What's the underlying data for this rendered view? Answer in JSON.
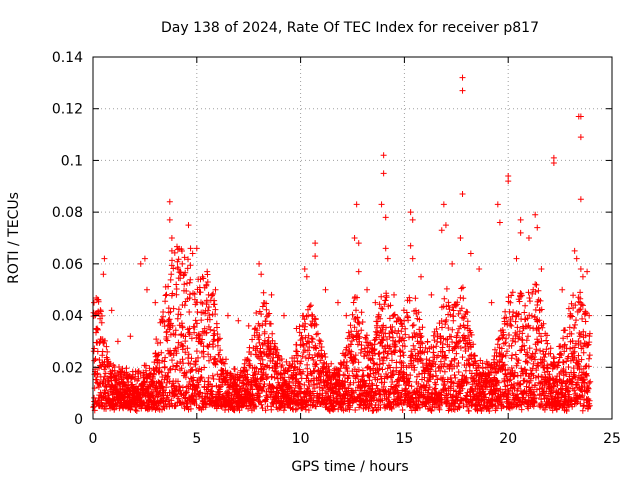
{
  "chart_data": {
    "type": "scatter",
    "title": "Day 138 of 2024, Rate Of TEC Index for receiver p817",
    "xlabel": "GPS time / hours",
    "ylabel": "ROTI / TECUs",
    "xlim": [
      0,
      25
    ],
    "ylim": [
      0,
      0.14
    ],
    "xticks": [
      {
        "value": 0,
        "label": "0"
      },
      {
        "value": 5,
        "label": "5"
      },
      {
        "value": 10,
        "label": "10"
      },
      {
        "value": 15,
        "label": "15"
      },
      {
        "value": 20,
        "label": "20"
      },
      {
        "value": 25,
        "label": "25"
      }
    ],
    "yticks": [
      {
        "value": 0,
        "label": "0"
      },
      {
        "value": 0.02,
        "label": "0.02"
      },
      {
        "value": 0.04,
        "label": "0.04"
      },
      {
        "value": 0.06,
        "label": "0.06"
      },
      {
        "value": 0.08,
        "label": "0.08"
      },
      {
        "value": 0.1,
        "label": "0.1"
      },
      {
        "value": 0.12,
        "label": "0.12"
      },
      {
        "value": 0.14,
        "label": "0.14"
      }
    ],
    "grid": true,
    "marker": "+",
    "series_color": "#ff0000",
    "points": [
      [
        0.05,
        0.045
      ],
      [
        0.1,
        0.04
      ],
      [
        0.2,
        0.035
      ],
      [
        0.55,
        0.062
      ],
      [
        0.5,
        0.056
      ],
      [
        0.9,
        0.042
      ],
      [
        1.2,
        0.03
      ],
      [
        1.8,
        0.032
      ],
      [
        2.3,
        0.06
      ],
      [
        2.5,
        0.062
      ],
      [
        2.6,
        0.05
      ],
      [
        3.0,
        0.045
      ],
      [
        3.7,
        0.084
      ],
      [
        3.7,
        0.077
      ],
      [
        3.8,
        0.07
      ],
      [
        3.8,
        0.065
      ],
      [
        4.1,
        0.058
      ],
      [
        4.3,
        0.06
      ],
      [
        4.6,
        0.075
      ],
      [
        4.7,
        0.066
      ],
      [
        4.8,
        0.064
      ],
      [
        5.0,
        0.066
      ],
      [
        5.5,
        0.057
      ],
      [
        5.9,
        0.05
      ],
      [
        6.5,
        0.04
      ],
      [
        7.0,
        0.038
      ],
      [
        7.5,
        0.036
      ],
      [
        8.0,
        0.06
      ],
      [
        8.1,
        0.056
      ],
      [
        8.6,
        0.048
      ],
      [
        9.2,
        0.04
      ],
      [
        9.8,
        0.035
      ],
      [
        10.2,
        0.058
      ],
      [
        10.3,
        0.055
      ],
      [
        10.7,
        0.068
      ],
      [
        10.7,
        0.063
      ],
      [
        11.2,
        0.05
      ],
      [
        11.8,
        0.045
      ],
      [
        12.2,
        0.04
      ],
      [
        12.7,
        0.083
      ],
      [
        12.6,
        0.07
      ],
      [
        12.8,
        0.068
      ],
      [
        12.8,
        0.057
      ],
      [
        13.2,
        0.05
      ],
      [
        13.6,
        0.045
      ],
      [
        13.9,
        0.083
      ],
      [
        14.0,
        0.095
      ],
      [
        14.0,
        0.102
      ],
      [
        14.1,
        0.078
      ],
      [
        14.1,
        0.066
      ],
      [
        14.2,
        0.062
      ],
      [
        14.5,
        0.048
      ],
      [
        15.3,
        0.08
      ],
      [
        15.4,
        0.077
      ],
      [
        15.3,
        0.067
      ],
      [
        15.4,
        0.062
      ],
      [
        15.8,
        0.055
      ],
      [
        16.3,
        0.048
      ],
      [
        16.8,
        0.073
      ],
      [
        16.9,
        0.083
      ],
      [
        17.0,
        0.075
      ],
      [
        17.3,
        0.06
      ],
      [
        17.7,
        0.07
      ],
      [
        17.8,
        0.127
      ],
      [
        17.8,
        0.132
      ],
      [
        17.8,
        0.087
      ],
      [
        18.2,
        0.064
      ],
      [
        18.6,
        0.058
      ],
      [
        19.2,
        0.045
      ],
      [
        19.5,
        0.083
      ],
      [
        19.6,
        0.076
      ],
      [
        20.0,
        0.094
      ],
      [
        20.0,
        0.092
      ],
      [
        20.4,
        0.062
      ],
      [
        20.6,
        0.077
      ],
      [
        20.6,
        0.072
      ],
      [
        21.0,
        0.07
      ],
      [
        21.3,
        0.079
      ],
      [
        21.4,
        0.074
      ],
      [
        21.6,
        0.058
      ],
      [
        22.2,
        0.101
      ],
      [
        22.2,
        0.099
      ],
      [
        22.6,
        0.05
      ],
      [
        23.2,
        0.065
      ],
      [
        23.3,
        0.062
      ],
      [
        23.4,
        0.117
      ],
      [
        23.5,
        0.117
      ],
      [
        23.5,
        0.109
      ],
      [
        23.5,
        0.085
      ],
      [
        23.5,
        0.058
      ],
      [
        23.8,
        0.057
      ],
      [
        23.9,
        0.04
      ],
      [
        23.6,
        0.055
      ]
    ]
  }
}
